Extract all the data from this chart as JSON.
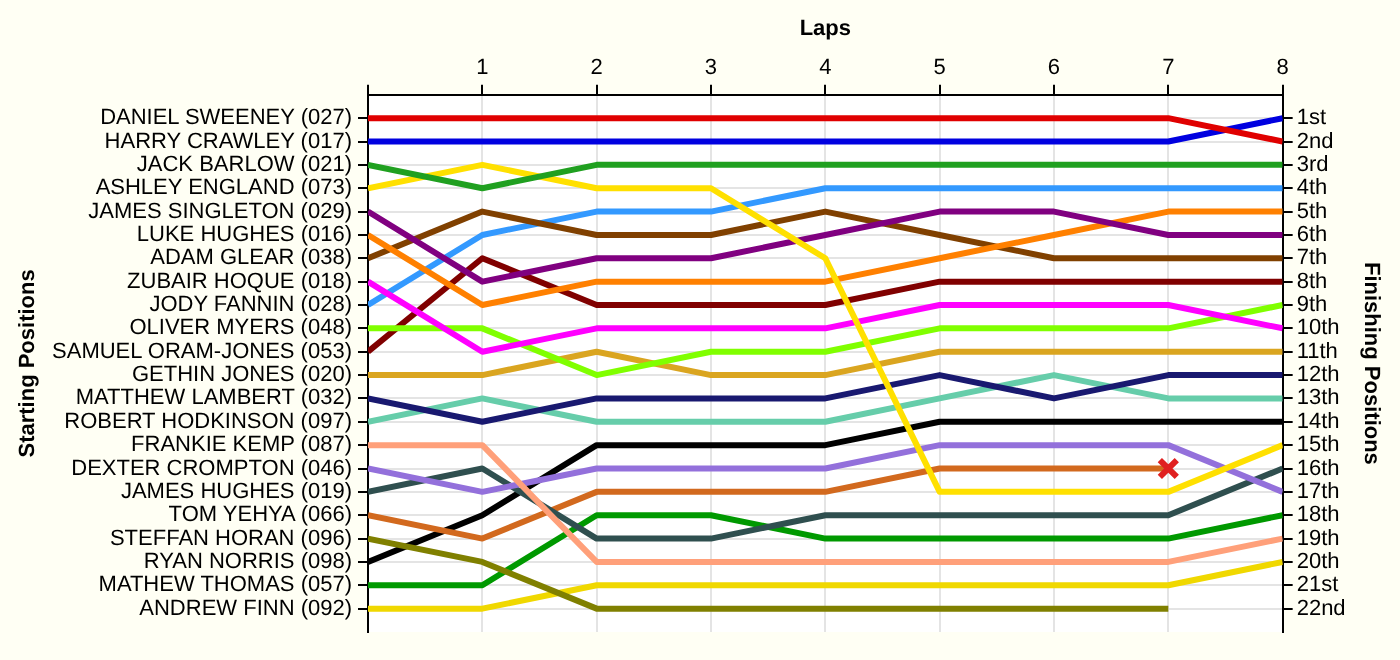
{
  "chart_data": {
    "type": "line",
    "xlabel": "Laps",
    "ylabel": "Finishing Positions",
    "x": [
      0,
      1,
      2,
      3,
      4,
      5,
      6,
      7,
      8
    ],
    "xlim": [
      0,
      8
    ],
    "xticks": [
      {
        "value": 0,
        "label": null
      },
      1,
      2,
      3,
      4,
      5,
      6,
      7,
      8
    ],
    "ylim": [
      23,
      0
    ],
    "yticks": [
      {
        "value": 1,
        "label": "1st"
      },
      {
        "value": 2,
        "label": "2nd"
      },
      {
        "value": 3,
        "label": "3rd"
      },
      {
        "value": 4,
        "label": "4th"
      },
      {
        "value": 5,
        "label": "5th"
      },
      {
        "value": 6,
        "label": "6th"
      },
      {
        "value": 7,
        "label": "7th"
      },
      {
        "value": 8,
        "label": "8th"
      },
      {
        "value": 9,
        "label": "9th"
      },
      {
        "value": 10,
        "label": "10th"
      },
      {
        "value": 11,
        "label": "11th"
      },
      {
        "value": 12,
        "label": "12th"
      },
      {
        "value": 13,
        "label": "13th"
      },
      {
        "value": 14,
        "label": "14th"
      },
      {
        "value": 15,
        "label": "15th"
      },
      {
        "value": 16,
        "label": "16th"
      },
      {
        "value": 17,
        "label": "17th"
      },
      {
        "value": 18,
        "label": "18th"
      },
      {
        "value": 19,
        "label": "19th"
      },
      {
        "value": 20,
        "label": "20th"
      },
      {
        "value": 21,
        "label": "21st"
      },
      {
        "value": 22,
        "label": "22nd"
      }
    ],
    "annotations": [
      "DANIEL SWEENEY (027)",
      "HARRY CRAWLEY (017)",
      "JACK BARLOW (021)",
      "ASHLEY ENGLAND (073)",
      "JAMES SINGLETON (029)",
      "LUKE HUGHES (016)",
      "ADAM GLEAR (038)",
      "ZUBAIR HOQUE (018)",
      "JODY FANNIN (028)",
      "OLIVER MYERS (048)",
      "SAMUEL ORAM-JONES (053)",
      "GETHIN JONES (020)",
      "MATTHEW LAMBERT (032)",
      "ROBERT HODKINSON (097)",
      "FRANKIE KEMP (087)",
      "DEXTER CROMPTON (046)",
      "JAMES HUGHES (019)",
      "TOM YEHYA (066)",
      "STEFFAN HORAN (096)",
      "RYAN NORRIS (098)",
      "MATHEW THOMAS (057)",
      "ANDREW FINN (092)",
      "Starting Positions"
    ],
    "grid": true,
    "marker": "none",
    "series": [
      {
        "color": "#e00000",
        "values": [
          1,
          1,
          1,
          1,
          1,
          1,
          1,
          1,
          2
        ]
      },
      {
        "color": "#0000e0",
        "values": [
          2,
          2,
          2,
          2,
          2,
          2,
          2,
          2,
          1
        ]
      },
      {
        "color": "#20a020",
        "values": [
          3,
          4,
          3,
          3,
          3,
          3,
          3,
          3,
          3
        ]
      },
      {
        "color": "#ffe000",
        "values": [
          4,
          3,
          4,
          4,
          7,
          17,
          17,
          17,
          15
        ]
      },
      {
        "color": "#800080",
        "values": [
          5,
          8,
          7,
          7,
          6,
          5,
          5,
          6,
          6
        ]
      },
      {
        "color": "#ff8000",
        "values": [
          6,
          9,
          8,
          8,
          8,
          7,
          6,
          5,
          5
        ]
      },
      {
        "color": "#804000",
        "values": [
          7,
          5,
          6,
          6,
          5,
          6,
          7,
          7,
          7
        ]
      },
      {
        "color": "#ff00ff",
        "values": [
          8,
          11,
          10,
          10,
          10,
          9,
          9,
          9,
          10
        ]
      },
      {
        "color": "#3399ff",
        "values": [
          9,
          6,
          5,
          5,
          4,
          4,
          4,
          4,
          4
        ]
      },
      {
        "color": "#80ff00",
        "values": [
          10,
          10,
          12,
          11,
          11,
          10,
          10,
          10,
          9
        ]
      },
      {
        "color": "#800000",
        "values": [
          11,
          7,
          9,
          9,
          9,
          8,
          8,
          8,
          8
        ]
      },
      {
        "color": "#daa520",
        "values": [
          12,
          12,
          11,
          12,
          12,
          11,
          11,
          11,
          11
        ]
      },
      {
        "color": "#191970",
        "values": [
          13,
          14,
          13,
          13,
          13,
          12,
          13,
          12,
          12
        ]
      },
      {
        "color": "#66cdaa",
        "values": [
          14,
          13,
          14,
          14,
          14,
          13,
          12,
          13,
          13
        ]
      },
      {
        "color": "#ffa07a",
        "values": [
          15,
          15,
          20,
          20,
          20,
          20,
          20,
          20,
          19
        ]
      },
      {
        "color": "#9370db",
        "values": [
          16,
          17,
          16,
          16,
          16,
          15,
          15,
          15,
          17
        ]
      },
      {
        "color": "#2f4f4f",
        "values": [
          17,
          16,
          19,
          19,
          18,
          18,
          18,
          18,
          16
        ]
      },
      {
        "color": "#d2691e",
        "values": [
          18,
          19,
          17,
          17,
          17,
          16,
          16,
          16,
          null
        ]
      },
      {
        "color": "#808000",
        "values": [
          19,
          20,
          22,
          22,
          22,
          22,
          22,
          22,
          null
        ]
      },
      {
        "color": "#000000",
        "values": [
          20,
          18,
          15,
          15,
          15,
          14,
          14,
          14,
          14
        ]
      },
      {
        "color": "#009900",
        "values": [
          21,
          21,
          18,
          18,
          19,
          19,
          19,
          19,
          18
        ]
      },
      {
        "color": "#f0d800",
        "values": [
          22,
          22,
          21,
          21,
          21,
          21,
          21,
          21,
          20
        ]
      },
      {
        "type": "scatter",
        "marker": "cross",
        "color": "#e02020",
        "x": [
          7
        ],
        "values": [
          16
        ]
      }
    ]
  }
}
